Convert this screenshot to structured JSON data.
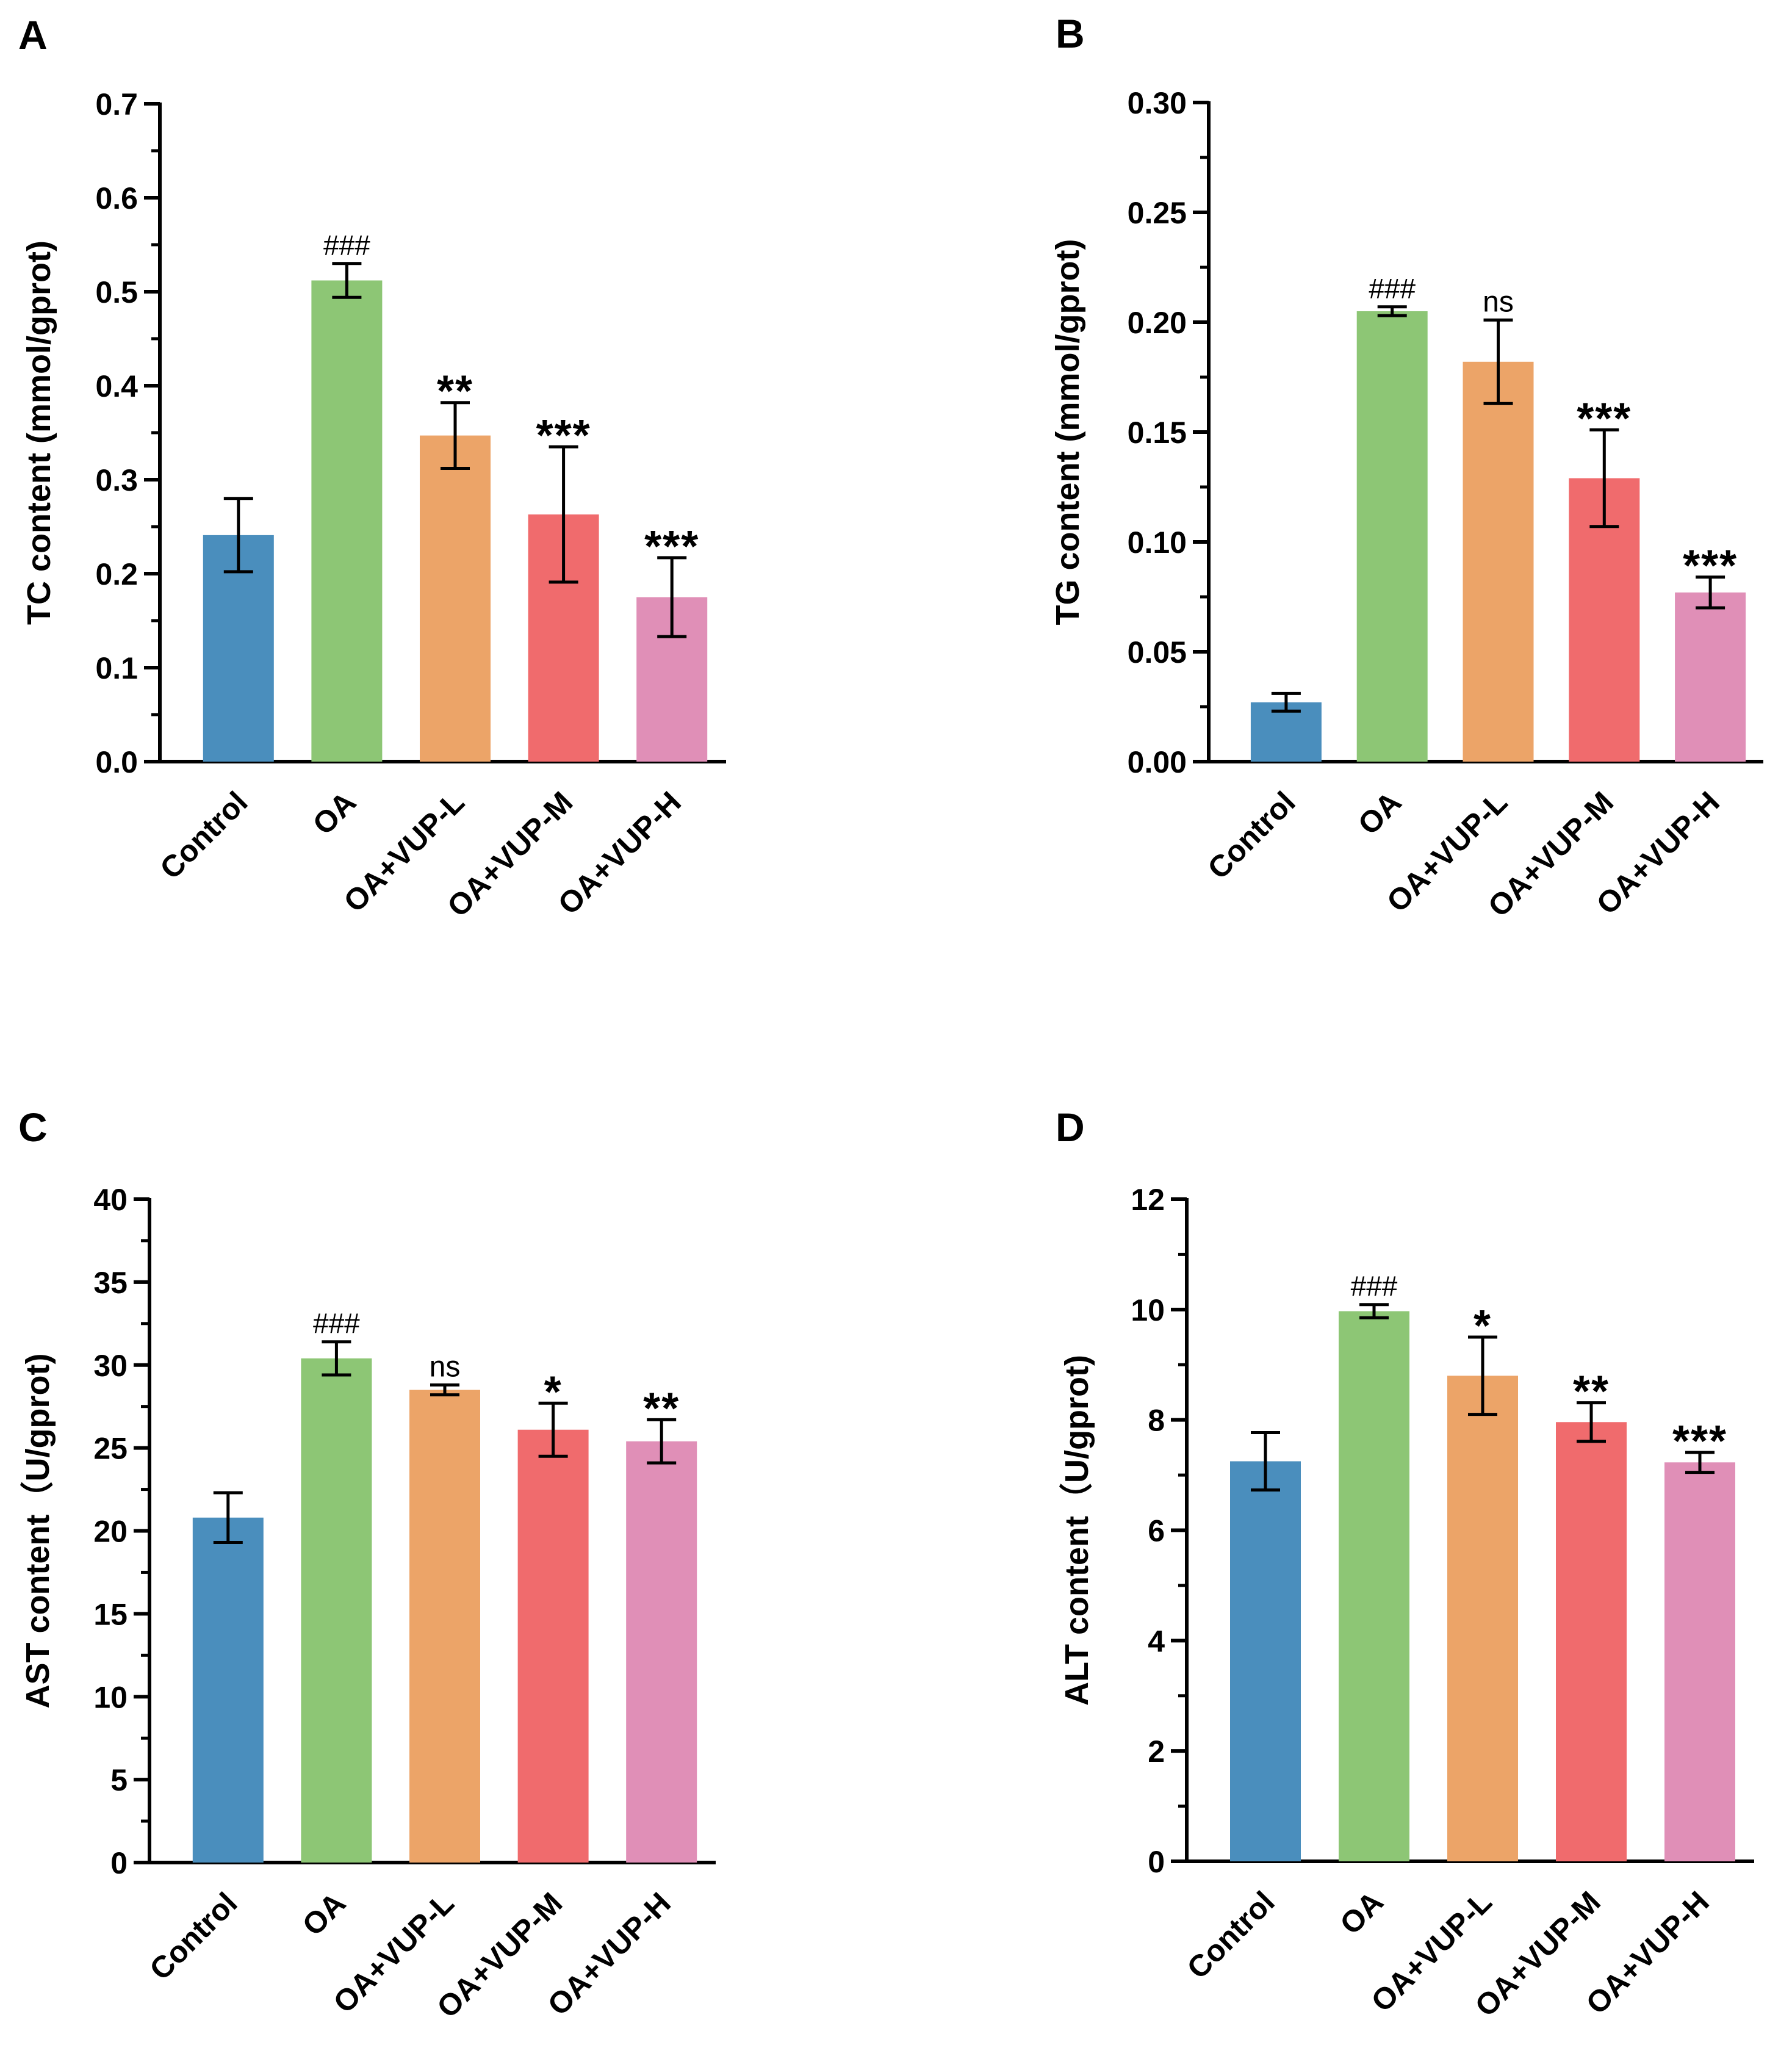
{
  "figure": {
    "group_colors": [
      "#4a8ebd",
      "#8dc675",
      "#eca468",
      "#f06b6d",
      "#e08fb7"
    ],
    "error_bar_color": "#000000",
    "axis_color": "#000000",
    "categories": [
      "Control",
      "OA",
      "OA+VUP-L",
      "OA+VUP-M",
      "OA+VUP-H"
    ]
  },
  "chart_data": [
    {
      "panel": "A",
      "type": "bar",
      "ylabel": "TC content (mmol/gprot)",
      "categories": [
        "Control",
        "OA",
        "OA+VUP-L",
        "OA+VUP-M",
        "OA+VUP-H"
      ],
      "values": [
        0.241,
        0.512,
        0.347,
        0.263,
        0.175
      ],
      "errors": [
        0.039,
        0.018,
        0.035,
        0.072,
        0.042
      ],
      "annotations": [
        "",
        "###",
        "**",
        "***",
        "***"
      ],
      "ylim": [
        0,
        0.7
      ],
      "major_ticks": [
        0.0,
        0.1,
        0.2,
        0.3,
        0.4,
        0.5,
        0.6,
        0.7
      ],
      "tick_labels": [
        "0.0",
        "0.1",
        "0.2",
        "0.3",
        "0.4",
        "0.5",
        "0.6",
        "0.7"
      ],
      "minor_step": 0.05
    },
    {
      "panel": "B",
      "type": "bar",
      "ylabel": "TG content (mmol/gprot)",
      "categories": [
        "Control",
        "OA",
        "OA+VUP-L",
        "OA+VUP-M",
        "OA+VUP-H"
      ],
      "values": [
        0.027,
        0.205,
        0.182,
        0.129,
        0.077
      ],
      "errors": [
        0.004,
        0.002,
        0.019,
        0.022,
        0.007
      ],
      "annotations": [
        "",
        "###",
        "ns",
        "***",
        "***"
      ],
      "ylim": [
        0,
        0.3
      ],
      "major_ticks": [
        0.0,
        0.05,
        0.1,
        0.15,
        0.2,
        0.25,
        0.3
      ],
      "tick_labels": [
        "0.00",
        "0.05",
        "0.10",
        "0.15",
        "0.20",
        "0.25",
        "0.30"
      ],
      "minor_step": 0.025
    },
    {
      "panel": "C",
      "type": "bar",
      "ylabel": "AST content（U/gprot)",
      "categories": [
        "Control",
        "OA",
        "OA+VUP-L",
        "OA+VUP-M",
        "OA+VUP-H"
      ],
      "values": [
        20.8,
        30.4,
        28.5,
        26.1,
        25.4
      ],
      "errors": [
        1.5,
        1.0,
        0.3,
        1.6,
        1.3
      ],
      "annotations": [
        "",
        "###",
        "ns",
        "*",
        "**"
      ],
      "ylim": [
        0,
        40
      ],
      "major_ticks": [
        0,
        5,
        10,
        15,
        20,
        25,
        30,
        35,
        40
      ],
      "tick_labels": [
        "0",
        "5",
        "10",
        "15",
        "20",
        "25",
        "30",
        "35",
        "40"
      ],
      "minor_step": 2.5
    },
    {
      "panel": "D",
      "type": "bar",
      "ylabel": "ALT content（U/gprot)",
      "categories": [
        "Control",
        "OA",
        "OA+VUP-L",
        "OA+VUP-M",
        "OA+VUP-H"
      ],
      "values": [
        7.25,
        9.97,
        8.8,
        7.96,
        7.23
      ],
      "errors": [
        0.52,
        0.12,
        0.7,
        0.35,
        0.18
      ],
      "annotations": [
        "",
        "###",
        "*",
        "**",
        "***"
      ],
      "ylim": [
        0,
        12
      ],
      "major_ticks": [
        0,
        2,
        4,
        6,
        8,
        10,
        12
      ],
      "tick_labels": [
        "0",
        "2",
        "4",
        "6",
        "8",
        "10",
        "12"
      ],
      "minor_step": 1
    }
  ]
}
